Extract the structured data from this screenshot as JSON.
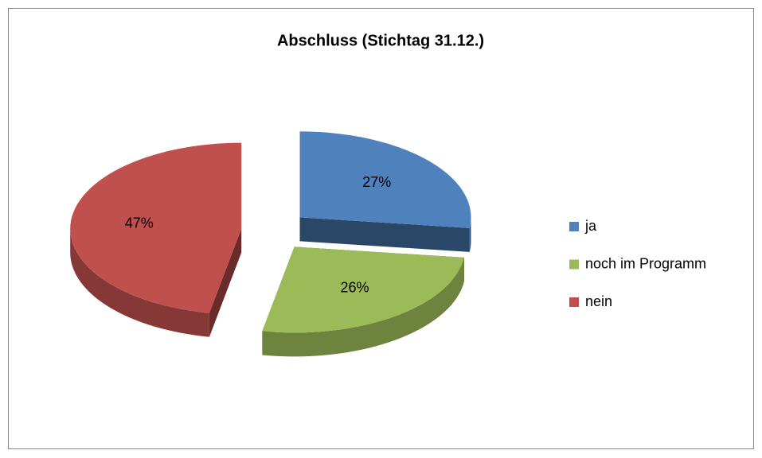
{
  "chart_data": {
    "type": "pie",
    "title": "Abschluss (Stichtag 31.12.)",
    "categories": [
      "ja",
      "noch im Programm",
      "nein"
    ],
    "values": [
      27,
      26,
      47
    ],
    "value_labels": [
      "27%",
      "26%",
      "47%"
    ],
    "colors": [
      "#4f81bd",
      "#9bbb59",
      "#c0504d"
    ],
    "legend": "right"
  }
}
